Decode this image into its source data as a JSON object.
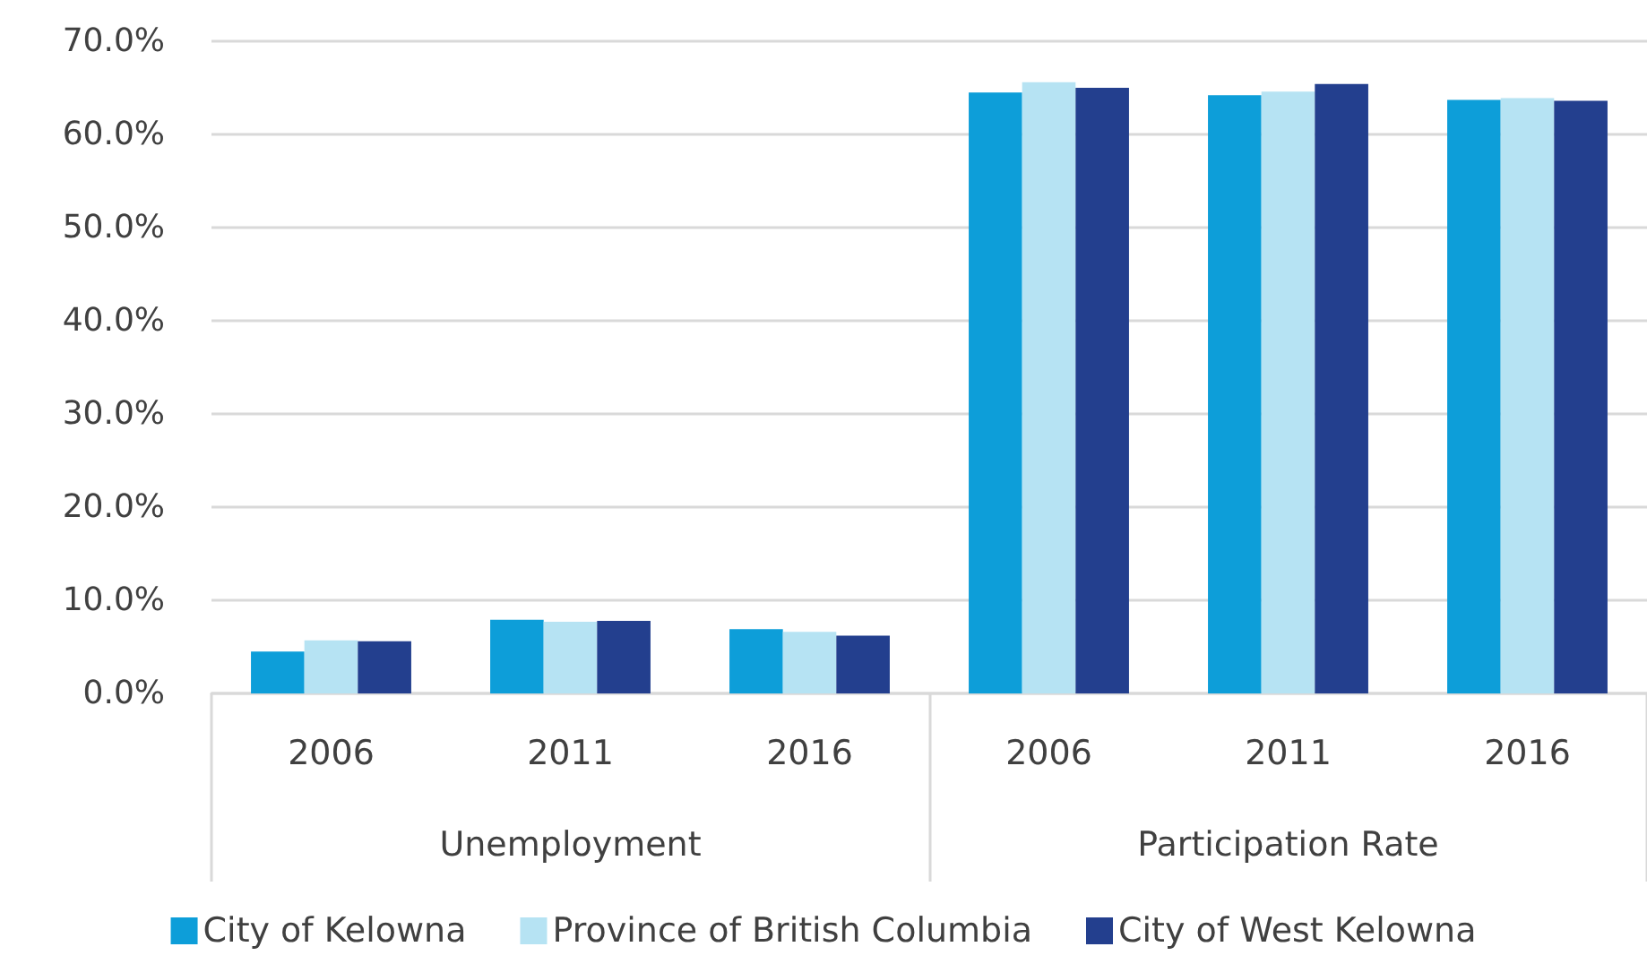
{
  "chart_data": {
    "type": "bar",
    "categories": [
      "2006",
      "2011",
      "2016",
      "2006",
      "2011",
      "2016"
    ],
    "series": [
      {
        "name": "City of Kelowna",
        "color": "#0d9ed9",
        "values": [
          4.5,
          7.9,
          6.9,
          64.5,
          64.2,
          63.7
        ]
      },
      {
        "name": "Province of British Columbia",
        "color": "#b6e3f3",
        "values": [
          5.7,
          7.7,
          6.6,
          65.6,
          64.6,
          63.9
        ]
      },
      {
        "name": "City of West Kelowna",
        "color": "#233f8e",
        "values": [
          5.6,
          7.8,
          6.2,
          65.0,
          65.4,
          63.6
        ]
      }
    ],
    "ylim": [
      0,
      70
    ],
    "yticks": [
      {
        "value": 0,
        "label": "0.0%"
      },
      {
        "value": 10,
        "label": "10.0%"
      },
      {
        "value": 20,
        "label": "20.0%"
      },
      {
        "value": 30,
        "label": "30.0%"
      },
      {
        "value": 40,
        "label": "40.0%"
      },
      {
        "value": 50,
        "label": "50.0%"
      },
      {
        "value": 60,
        "label": "60.0%"
      },
      {
        "value": 70,
        "label": "70.0%"
      }
    ],
    "grid": "y",
    "legend": "bottom",
    "annotations": [
      "Unemployment",
      "Participation Rate"
    ]
  }
}
